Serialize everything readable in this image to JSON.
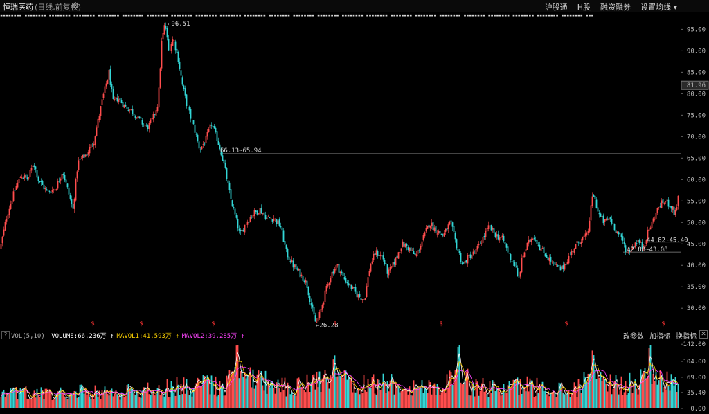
{
  "header": {
    "stock_name": "恒瑞医药",
    "period_label": "(日线,前复权)",
    "links": [
      "沪股通",
      "H股",
      "融资融券",
      "设置均线 ▾"
    ]
  },
  "colors": {
    "up": "#ff4d4d",
    "down": "#33d6d6",
    "ma5": "#ffffff",
    "ma10": "#ffd400",
    "ma20": "#ff44ff"
  },
  "chart_data": [
    {
      "type": "candlestick",
      "axis_side": "right",
      "y_ticks": [
        30.0,
        35.0,
        40.0,
        45.0,
        50.0,
        55.0,
        60.0,
        65.0,
        70.0,
        75.0,
        80.0,
        85.0,
        90.0,
        95.0
      ],
      "ylim": [
        26.0,
        97.0
      ],
      "current_price": "81.96",
      "price_path": [
        [
          0,
          44
        ],
        [
          10,
          52
        ],
        [
          22,
          58
        ],
        [
          30,
          61
        ],
        [
          40,
          60
        ],
        [
          48,
          64
        ],
        [
          55,
          60
        ],
        [
          68,
          57
        ],
        [
          80,
          58
        ],
        [
          90,
          62
        ],
        [
          100,
          56
        ],
        [
          105,
          53
        ],
        [
          112,
          64
        ],
        [
          125,
          66
        ],
        [
          135,
          69
        ],
        [
          148,
          79
        ],
        [
          157,
          85
        ],
        [
          163,
          78
        ],
        [
          170,
          79
        ],
        [
          180,
          77
        ],
        [
          190,
          76
        ],
        [
          200,
          74
        ],
        [
          212,
          72
        ],
        [
          220,
          74
        ],
        [
          228,
          78
        ],
        [
          233,
          92
        ],
        [
          238,
          96.51
        ],
        [
          243,
          90
        ],
        [
          250,
          93
        ],
        [
          257,
          88
        ],
        [
          263,
          82
        ],
        [
          270,
          77
        ],
        [
          280,
          72
        ],
        [
          288,
          67
        ],
        [
          296,
          69
        ],
        [
          305,
          73
        ],
        [
          312,
          70
        ],
        [
          318,
          67
        ],
        [
          325,
          62
        ],
        [
          332,
          56
        ],
        [
          340,
          51
        ],
        [
          346,
          47
        ],
        [
          355,
          50
        ],
        [
          365,
          52
        ],
        [
          375,
          53
        ],
        [
          385,
          51
        ],
        [
          395,
          51
        ],
        [
          405,
          49
        ],
        [
          413,
          43
        ],
        [
          423,
          40
        ],
        [
          433,
          38
        ],
        [
          442,
          36
        ],
        [
          450,
          30
        ],
        [
          456,
          26.28
        ],
        [
          462,
          29
        ],
        [
          470,
          34
        ],
        [
          478,
          38
        ],
        [
          486,
          40
        ],
        [
          496,
          37
        ],
        [
          506,
          35
        ],
        [
          516,
          33
        ],
        [
          526,
          32
        ],
        [
          534,
          40
        ],
        [
          542,
          43
        ],
        [
          552,
          42
        ],
        [
          560,
          38
        ],
        [
          570,
          41
        ],
        [
          580,
          45
        ],
        [
          590,
          44
        ],
        [
          600,
          42
        ],
        [
          610,
          46
        ],
        [
          620,
          50
        ],
        [
          630,
          48
        ],
        [
          640,
          47
        ],
        [
          650,
          50
        ],
        [
          660,
          44
        ],
        [
          668,
          40
        ],
        [
          676,
          42
        ],
        [
          686,
          43
        ],
        [
          696,
          46
        ],
        [
          706,
          49
        ],
        [
          716,
          47
        ],
        [
          726,
          46
        ],
        [
          736,
          42
        ],
        [
          744,
          40
        ],
        [
          748,
          36
        ],
        [
          754,
          42
        ],
        [
          762,
          45
        ],
        [
          770,
          47
        ],
        [
          780,
          44
        ],
        [
          790,
          42
        ],
        [
          800,
          40
        ],
        [
          810,
          39
        ],
        [
          818,
          41
        ],
        [
          828,
          44
        ],
        [
          838,
          46
        ],
        [
          848,
          47
        ],
        [
          856,
          57
        ],
        [
          864,
          52
        ],
        [
          872,
          50
        ],
        [
          880,
          51
        ],
        [
          890,
          48
        ],
        [
          898,
          46
        ],
        [
          905,
          43
        ],
        [
          912,
          44
        ],
        [
          920,
          46
        ],
        [
          928,
          44
        ],
        [
          936,
          48
        ],
        [
          944,
          51
        ],
        [
          952,
          54
        ],
        [
          960,
          55
        ],
        [
          968,
          54
        ],
        [
          974,
          52
        ],
        [
          981,
          57
        ]
      ],
      "annotations": [
        {
          "text": "←96.51",
          "x": 238,
          "y": 96.51,
          "dx": 4
        },
        {
          "text": "←26.28",
          "x": 456,
          "y": 26.28,
          "dx": 0
        },
        {
          "text": "66.13~65.94",
          "x": 318,
          "y": 66.03,
          "dx": 0
        },
        {
          "text": "44.82~45.40",
          "x": 934,
          "y": 45.1,
          "dx": 0
        },
        {
          "text": "42.88~43.08",
          "x": 905,
          "y": 42.98,
          "dx": 0
        }
      ],
      "horizontal_lines": [
        {
          "y": 66.03,
          "x_start": 318
        },
        {
          "y": 45.4,
          "x_start": 930
        },
        {
          "y": 43.08,
          "x_start": 900
        }
      ],
      "markers": [
        {
          "text": "$",
          "x": 134
        },
        {
          "text": "$",
          "x": 204
        },
        {
          "text": "$",
          "x": 308
        },
        {
          "text": "$",
          "x": 484
        },
        {
          "text": "$",
          "x": 637
        },
        {
          "text": "$",
          "x": 818
        },
        {
          "text": "$",
          "x": 958
        }
      ]
    },
    {
      "type": "bar",
      "indicator": "VOL(5,10)",
      "legend": [
        {
          "text": "VOLUME:66.236万 ↑",
          "color": "#ffffff"
        },
        {
          "text": "MAVOL1:41.593万 ↑",
          "color": "#ffd400"
        },
        {
          "text": "MAVOL2:39.285万 ↑",
          "color": "#ff44ff"
        }
      ],
      "y_ticks": [
        "142.00",
        "104.00",
        "69.00",
        "35.40",
        "0.00"
      ],
      "y_tick_values": [
        142,
        104,
        69,
        35.4,
        0
      ],
      "ylim": [
        0,
        150
      ],
      "buttons": [
        "改参数",
        "加指标",
        "换指标"
      ],
      "close_icon": "close-icon",
      "volume_profile": [
        [
          0,
          30
        ],
        [
          40,
          38
        ],
        [
          80,
          32
        ],
        [
          120,
          44
        ],
        [
          160,
          36
        ],
        [
          200,
          40
        ],
        [
          240,
          48
        ],
        [
          280,
          52
        ],
        [
          300,
          60
        ],
        [
          320,
          50
        ],
        [
          340,
          64
        ],
        [
          360,
          70
        ],
        [
          380,
          62
        ],
        [
          400,
          48
        ],
        [
          440,
          54
        ],
        [
          480,
          66
        ],
        [
          520,
          56
        ],
        [
          560,
          60
        ],
        [
          600,
          48
        ],
        [
          640,
          52
        ],
        [
          660,
          72
        ],
        [
          680,
          50
        ],
        [
          720,
          46
        ],
        [
          760,
          54
        ],
        [
          800,
          44
        ],
        [
          840,
          50
        ],
        [
          860,
          66
        ],
        [
          900,
          52
        ],
        [
          940,
          70
        ],
        [
          981,
          58
        ]
      ],
      "volume_spikes": [
        {
          "x": 342,
          "value": 142
        },
        {
          "x": 482,
          "value": 118
        },
        {
          "x": 662,
          "value": 142
        },
        {
          "x": 856,
          "value": 128
        },
        {
          "x": 938,
          "value": 140
        }
      ]
    }
  ]
}
